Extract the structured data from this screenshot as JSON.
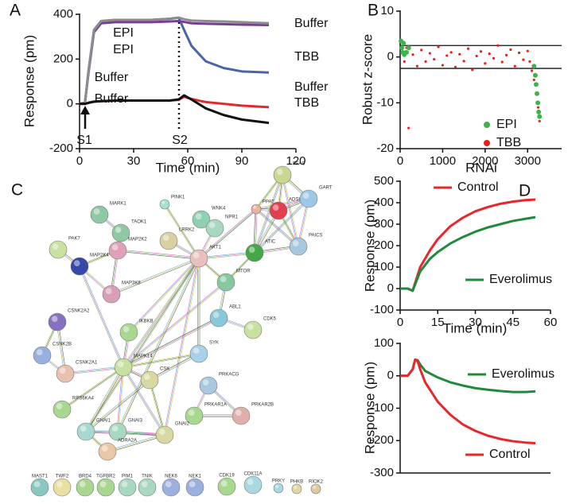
{
  "chart_data": [
    {
      "type": "line",
      "panel_label": "A",
      "xlabel": "Time (min)",
      "ylabel": "Response (pm)",
      "xlim": [
        0,
        120
      ],
      "xticks": [
        0,
        30,
        60,
        90,
        120
      ],
      "ylim": [
        -200,
        400
      ],
      "yticks": [
        -200,
        0,
        200,
        400
      ],
      "x": [
        0,
        3,
        5,
        8,
        12,
        20,
        30,
        40,
        50,
        55,
        58,
        62,
        70,
        80,
        90,
        105
      ],
      "series": [
        {
          "color": "#4a63ad",
          "values": [
            0,
            5,
            150,
            330,
            370,
            375,
            375,
            375,
            380,
            385,
            330,
            260,
            190,
            160,
            145,
            140
          ]
        },
        {
          "color": "#7a3d97",
          "values": [
            0,
            5,
            140,
            320,
            360,
            365,
            365,
            365,
            368,
            370,
            366,
            360,
            358,
            356,
            354,
            352
          ]
        },
        {
          "color": "#8c8c8c",
          "values": [
            0,
            5,
            150,
            330,
            370,
            375,
            375,
            375,
            380,
            385,
            378,
            372,
            370,
            368,
            365,
            360
          ]
        },
        {
          "color": "#e32a2a",
          "values": [
            0,
            0,
            5,
            10,
            12,
            15,
            15,
            15,
            15,
            18,
            32,
            22,
            8,
            0,
            -8,
            -15
          ]
        },
        {
          "color": "#111111",
          "values": [
            0,
            0,
            5,
            10,
            12,
            15,
            15,
            15,
            15,
            20,
            38,
            20,
            -20,
            -50,
            -70,
            -85
          ]
        }
      ],
      "annotations": [
        "Buffer",
        "EPI",
        "EPI",
        "TBB",
        "Buffer",
        "Buffer",
        "Buffer",
        "TBB",
        "S1",
        "S2"
      ]
    },
    {
      "type": "scatter",
      "panel_label": "B",
      "xlabel": "RNAi",
      "ylabel": "Robust z-score",
      "xlim": [
        0,
        3800
      ],
      "xticks": [
        0,
        1000,
        2000,
        3000
      ],
      "ylim": [
        -20,
        10
      ],
      "yticks": [
        -20,
        -10,
        0,
        10
      ],
      "hlines": [
        2.5,
        -2.5
      ],
      "series": [
        {
          "name": "EPI",
          "color": "#3cb44b",
          "x": [
            20,
            40,
            60,
            80,
            100,
            150,
            200,
            3150,
            3180,
            3200,
            3220,
            3240,
            3260,
            3280
          ],
          "values": [
            3.5,
            2,
            1,
            3,
            0.5,
            1,
            2,
            -2,
            -4,
            -6,
            -8,
            -10,
            -12,
            -13
          ]
        },
        {
          "name": "TBB",
          "color": "#ee1c1c",
          "x": [
            30,
            100,
            150,
            200,
            300,
            400,
            500,
            600,
            700,
            800,
            900,
            1000,
            1100,
            1200,
            1300,
            1400,
            1500,
            1600,
            1700,
            1800,
            1900,
            2000,
            2100,
            2200,
            2300,
            2400,
            2500,
            2600,
            2700,
            2800,
            2900,
            3000,
            3050,
            3100,
            3150,
            3200,
            3250,
            3280
          ],
          "values": [
            1,
            -1,
            2,
            -15.5,
            0.5,
            -2,
            1.5,
            -1,
            0.8,
            -0.5,
            2.2,
            -1.8,
            0.3,
            1,
            -2.2,
            0.6,
            -0.9,
            1.8,
            -2.8,
            0.2,
            1.2,
            -1.4,
            0.7,
            -0.3,
            2.5,
            -1.1,
            0.4,
            1.6,
            -2,
            0.9,
            -0.6,
            1.3,
            -1,
            -3,
            -5,
            -8,
            -11,
            -14
          ]
        }
      ]
    },
    {
      "type": "line",
      "panel_label": "D",
      "xlabel": "Time (min)",
      "ylabel": "Response (pm)",
      "xlim": [
        0,
        60
      ],
      "xticks": [
        0,
        15,
        30,
        45,
        60
      ],
      "ylim": [
        -100,
        500
      ],
      "yticks": [
        -100,
        0,
        100,
        200,
        300,
        400,
        500
      ],
      "x": [
        0,
        3,
        5,
        8,
        12,
        15,
        20,
        25,
        30,
        35,
        40,
        45,
        50,
        54
      ],
      "series": [
        {
          "name": "Control",
          "color": "#e8262b",
          "values": [
            0,
            0,
            -10,
            100,
            180,
            230,
            290,
            330,
            360,
            380,
            395,
            405,
            412,
            415
          ]
        },
        {
          "name": "Everolimus",
          "color": "#1f8a3c",
          "values": [
            0,
            0,
            -10,
            80,
            140,
            170,
            210,
            240,
            265,
            285,
            300,
            315,
            325,
            333
          ]
        }
      ]
    },
    {
      "type": "line",
      "ylabel": "Response (pm)",
      "xlim": [
        0,
        60
      ],
      "ylim": [
        -300,
        100
      ],
      "yticks": [
        -300,
        -200,
        -100,
        0,
        100
      ],
      "x": [
        0,
        3,
        5,
        6,
        7,
        8,
        10,
        15,
        20,
        25,
        30,
        35,
        40,
        45,
        50,
        54
      ],
      "series": [
        {
          "name": "Everolimus",
          "color": "#1f8a3c",
          "values": [
            0,
            0,
            20,
            50,
            48,
            35,
            15,
            -5,
            -20,
            -30,
            -38,
            -43,
            -47,
            -50,
            -50,
            -48
          ]
        },
        {
          "name": "Control",
          "color": "#e8262b",
          "values": [
            0,
            0,
            20,
            50,
            45,
            20,
            -20,
            -80,
            -120,
            -150,
            -170,
            -185,
            -195,
            -202,
            -206,
            -208
          ]
        }
      ]
    }
  ],
  "network": {
    "panel_label": "C",
    "nodes": [
      "MARK1",
      "TAOK1",
      "PINK1",
      "WNK4",
      "NPR1",
      "LRRK2",
      "PPAT",
      "PFAS",
      "ADSL",
      "GART",
      "PAICS",
      "ATIC",
      "PAK7",
      "MAP2K4",
      "MAP2K2",
      "AKT1",
      "MTOR",
      "MAP3K8",
      "ABL1",
      "CDK5",
      "CSNK2A2",
      "IKBKB",
      "SYK",
      "CSNK2B",
      "CSNK2A1",
      "MAPK14",
      "CSK",
      "PRKACG",
      "RPS6KA4",
      "GNAI1",
      "GNAI3",
      "PRKAR1A",
      "PRKAR2B",
      "GNAI2",
      "ADRA2A",
      "MAST1",
      "TWF2",
      "BRD4",
      "TGFBR2",
      "PIM1",
      "TNIK",
      "NEK6",
      "NEK1",
      "CDK19",
      "CDK11A",
      "PRKY",
      "PHKB",
      "RIOK2"
    ]
  }
}
